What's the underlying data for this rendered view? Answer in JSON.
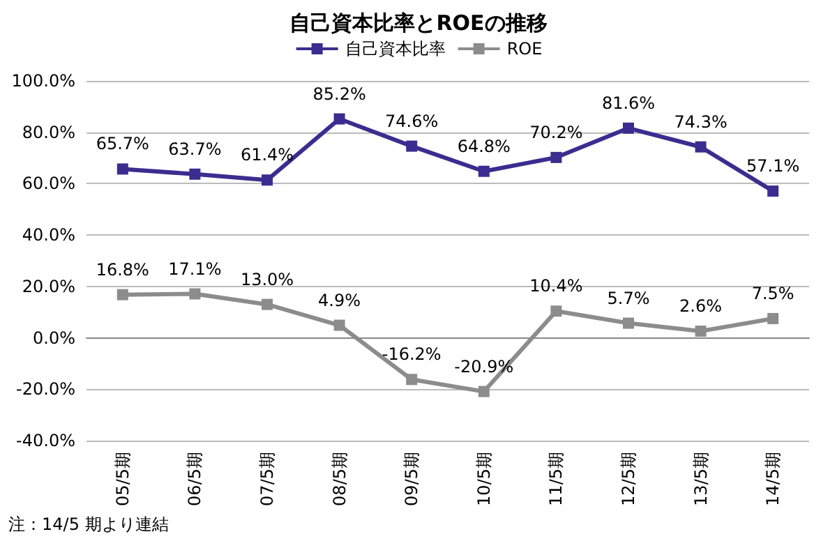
{
  "chart_data": {
    "type": "line",
    "title": "自己資本比率とROEの推移",
    "categories": [
      "05/5期",
      "06/5期",
      "07/5期",
      "08/5期",
      "09/5期",
      "10/5期",
      "11/5期",
      "12/5期",
      "13/5期",
      "14/5期"
    ],
    "series": [
      {
        "name": "自己資本比率",
        "color": "#3a2d8f",
        "values": [
          65.7,
          63.7,
          61.4,
          85.2,
          74.6,
          64.8,
          70.2,
          81.6,
          74.3,
          57.1
        ],
        "value_labels": [
          "65.7%",
          "63.7%",
          "61.4%",
          "85.2%",
          "74.6%",
          "64.8%",
          "70.2%",
          "81.6%",
          "74.3%",
          "57.1%"
        ]
      },
      {
        "name": "ROE",
        "color": "#8c8c8c",
        "values": [
          16.8,
          17.1,
          13.0,
          4.9,
          -16.2,
          -20.9,
          10.4,
          5.7,
          2.6,
          7.5
        ],
        "value_labels": [
          "16.8%",
          "17.1%",
          "13.0%",
          "4.9%",
          "-16.2%",
          "-20.9%",
          "10.4%",
          "5.7%",
          "2.6%",
          "7.5%"
        ]
      }
    ],
    "ylim": [
      -40,
      100
    ],
    "yticks": [
      {
        "value": -40,
        "label": "-40.0%"
      },
      {
        "value": -20,
        "label": "-20.0%"
      },
      {
        "value": 0,
        "label": "0.0%"
      },
      {
        "value": 20,
        "label": "20.0%"
      },
      {
        "value": 40,
        "label": "40.0%"
      },
      {
        "value": 60,
        "label": "60.0%"
      },
      {
        "value": 80,
        "label": "80.0%"
      },
      {
        "value": 100,
        "label": "100.0%"
      }
    ],
    "grid": "y",
    "legend": "top",
    "marker": "square",
    "line_style": "solid",
    "annotations": [
      "注：14/5 期より連結"
    ]
  }
}
